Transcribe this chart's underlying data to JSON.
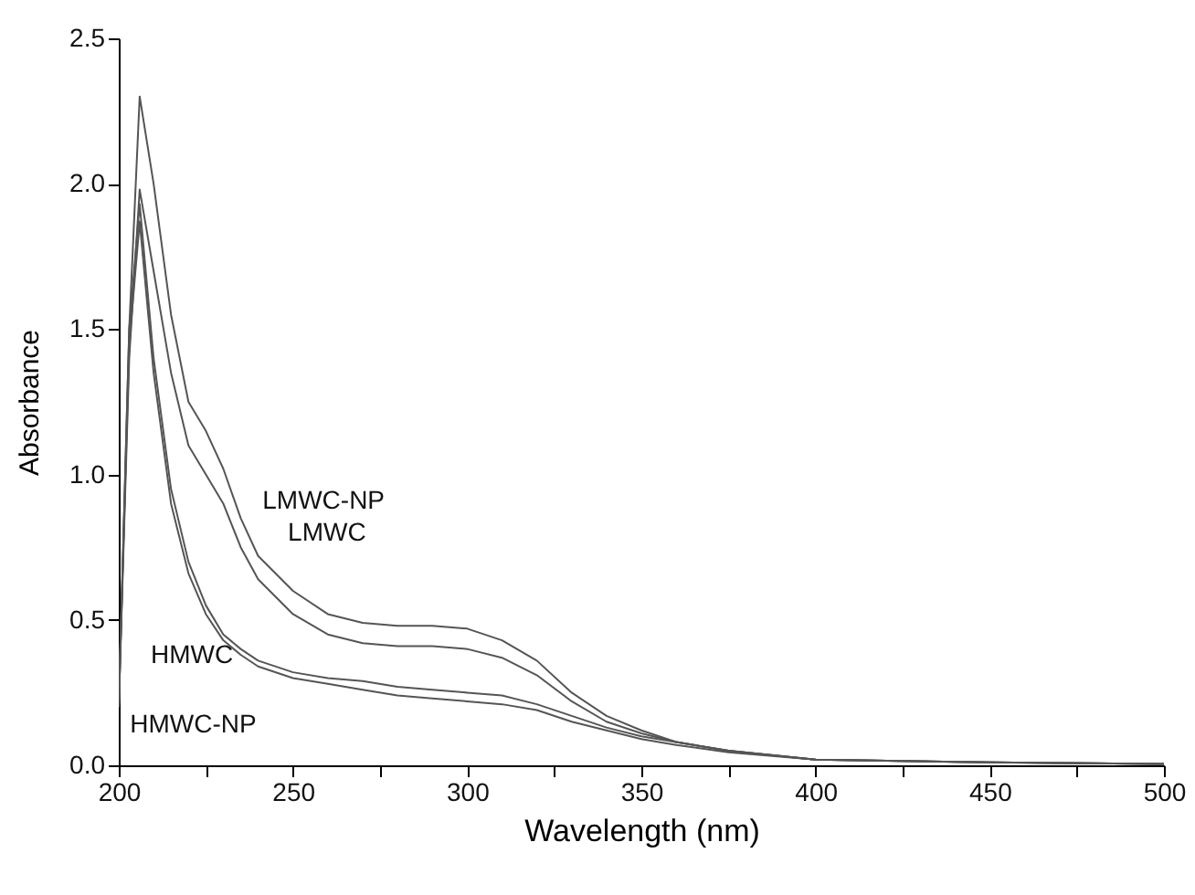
{
  "chart_data": {
    "type": "line",
    "xlabel": "Wavelength (nm)",
    "ylabel": "Absorbance",
    "xlim": [
      200,
      500
    ],
    "ylim": [
      0,
      2.5
    ],
    "xticks": [
      200,
      {
        "value": 225,
        "label": null
      },
      250,
      {
        "value": 275,
        "label": null
      },
      300,
      {
        "value": 325,
        "label": null
      },
      350,
      {
        "value": 375,
        "label": null
      },
      400,
      {
        "value": 425,
        "label": null
      },
      450,
      {
        "value": 475,
        "label": null
      },
      500
    ],
    "yticks": [
      {
        "value": 0,
        "label": "0.0"
      },
      0.5,
      {
        "value": 1,
        "label": "1.0"
      },
      1.5,
      {
        "value": 2,
        "label": "2.0"
      },
      2.5
    ],
    "grid": false,
    "legend": false,
    "marker": "none",
    "line_style": "solid",
    "x": [
      200,
      203,
      206,
      210,
      215,
      220,
      225,
      230,
      235,
      240,
      250,
      260,
      270,
      280,
      290,
      300,
      310,
      320,
      330,
      340,
      350,
      360,
      375,
      400,
      450,
      500
    ],
    "series": [
      {
        "color": "#555555",
        "values": [
          0.2,
          1.5,
          2.3,
          2.0,
          1.55,
          1.25,
          1.15,
          1.02,
          0.85,
          0.72,
          0.6,
          0.52,
          0.49,
          0.48,
          0.48,
          0.47,
          0.43,
          0.36,
          0.25,
          0.17,
          0.12,
          0.08,
          0.05,
          0.02,
          0.01,
          0.005
        ]
      },
      {
        "color": "#555555",
        "values": [
          0.2,
          1.4,
          1.98,
          1.7,
          1.35,
          1.1,
          1.0,
          0.9,
          0.75,
          0.64,
          0.52,
          0.45,
          0.42,
          0.41,
          0.41,
          0.4,
          0.37,
          0.31,
          0.22,
          0.15,
          0.11,
          0.08,
          0.05,
          0.02,
          0.01,
          0.005
        ]
      },
      {
        "color": "#555555",
        "values": [
          0.2,
          1.5,
          1.93,
          1.4,
          0.95,
          0.7,
          0.55,
          0.45,
          0.4,
          0.36,
          0.32,
          0.3,
          0.29,
          0.27,
          0.26,
          0.25,
          0.24,
          0.21,
          0.17,
          0.13,
          0.1,
          0.08,
          0.05,
          0.02,
          0.01,
          0.005
        ]
      },
      {
        "color": "#555555",
        "values": [
          0.2,
          1.45,
          1.87,
          1.35,
          0.9,
          0.66,
          0.52,
          0.43,
          0.38,
          0.34,
          0.3,
          0.28,
          0.26,
          0.24,
          0.23,
          0.22,
          0.21,
          0.19,
          0.15,
          0.12,
          0.09,
          0.07,
          0.045,
          0.02,
          0.01,
          0.005
        ]
      }
    ],
    "annotations": [
      {
        "text": "LMWC-NP",
        "x": 236,
        "y": 0.82
      },
      {
        "text": "LMWC",
        "x": 237,
        "y": 0.71
      },
      {
        "text": "HMWC",
        "x": 236,
        "y": 0.39
      },
      {
        "text": "HMWC-NP",
        "x": 250,
        "y": 0.3
      }
    ]
  }
}
